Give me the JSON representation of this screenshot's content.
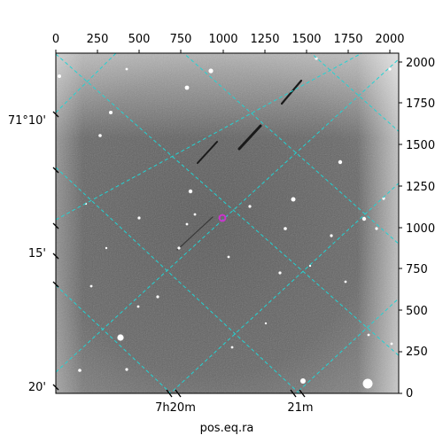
{
  "figure": {
    "xlabel": "pos.eq.ra",
    "top_ticks": [
      "0",
      "250",
      "500",
      "750",
      "1000",
      "1250",
      "1500",
      "1750",
      "2000"
    ],
    "right_ticks": [
      "0",
      "250",
      "500",
      "750",
      "1000",
      "1250",
      "1500",
      "1750",
      "2000"
    ],
    "left_ticks": [
      "71°10'",
      "15'",
      "20'"
    ],
    "bottom_ticks": [
      "7h20m",
      "21m"
    ],
    "grid_color": "#22d3d3",
    "marker_color": "#cc33cc"
  }
}
